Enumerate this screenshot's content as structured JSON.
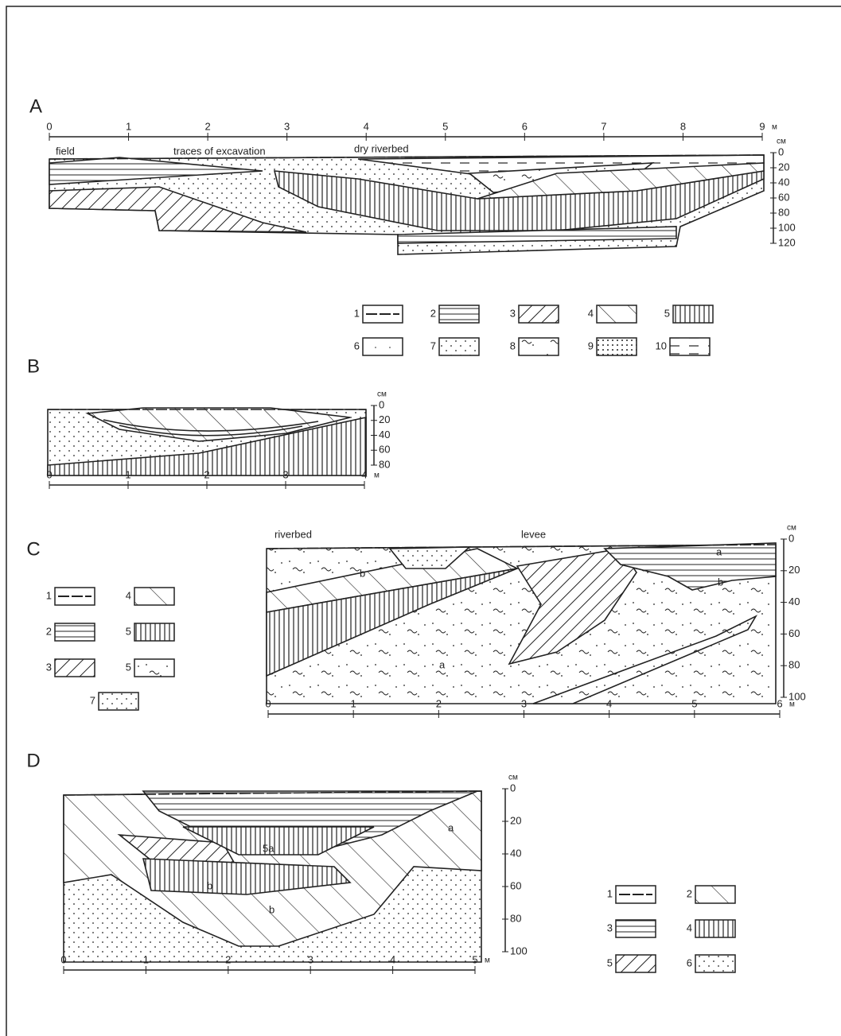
{
  "panels": [
    {
      "label": "A",
      "x_ticks": [
        "0",
        "1",
        "2",
        "3",
        "4",
        "5",
        "6",
        "7",
        "8",
        "9"
      ],
      "x_unit": "м",
      "depth_unit": "см",
      "depth_ticks": [
        "0",
        "20",
        "40",
        "60",
        "80",
        "100",
        "120"
      ],
      "annotations": [
        "field",
        "traces of excavation",
        "dry riverbed"
      ],
      "legend": [
        "1",
        "2",
        "3",
        "4",
        "5",
        "6",
        "7",
        "8",
        "9",
        "10"
      ]
    },
    {
      "label": "B",
      "x_ticks": [
        "0",
        "1",
        "2",
        "3",
        "4"
      ],
      "x_unit": "м",
      "depth_unit": "см",
      "depth_ticks": [
        "0",
        "20",
        "40",
        "60",
        "80"
      ],
      "annotations": [],
      "legend": []
    },
    {
      "label": "C",
      "x_ticks": [
        "0",
        "1",
        "2",
        "3",
        "4",
        "5",
        "6"
      ],
      "x_unit": "м",
      "depth_unit": "см",
      "depth_ticks": [
        "0",
        "20",
        "40",
        "60",
        "80",
        "100"
      ],
      "annotations": [
        "riverbed",
        "levee",
        "a",
        "b",
        "b",
        "a"
      ],
      "legend": [
        "1",
        "4",
        "2",
        "5",
        "3",
        "5",
        "7"
      ]
    },
    {
      "label": "D",
      "x_ticks": [
        "0",
        "1",
        "2",
        "3",
        "4",
        "5"
      ],
      "x_unit": "м",
      "depth_unit": "см",
      "depth_ticks": [
        "0",
        "20",
        "40",
        "60",
        "80",
        "100"
      ],
      "annotations": [
        "5a",
        "b",
        "b",
        "a"
      ],
      "legend": [
        "1",
        "2",
        "3",
        "4",
        "5",
        "6"
      ]
    }
  ]
}
